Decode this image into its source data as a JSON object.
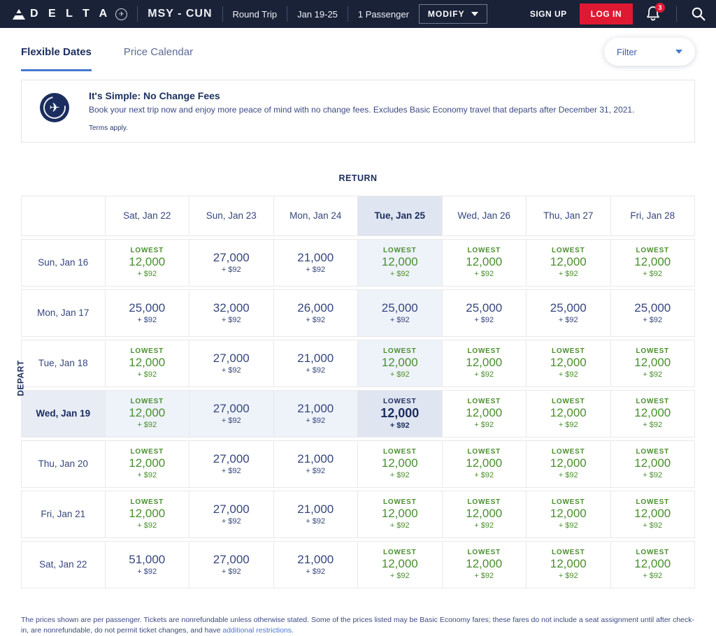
{
  "colors": {
    "brand_navy": "#1a2238",
    "accent_red": "#e01933",
    "lowest_green": "#4a8f2e",
    "highlight_blue": "#dfe5f1",
    "link_blue": "#4679d2"
  },
  "header": {
    "brand": "D E L T A",
    "route": "MSY - CUN",
    "trip_type": "Round Trip",
    "dates": "Jan 19-25",
    "passengers": "1 Passenger",
    "modify_label": "MODIFY",
    "sign_up_label": "SIGN UP",
    "log_in_label": "LOG IN",
    "notification_count": "3"
  },
  "tabs": [
    {
      "label": "Flexible Dates",
      "active": true
    },
    {
      "label": "Price Calendar",
      "active": false
    }
  ],
  "filter": {
    "label": "Filter"
  },
  "banner": {
    "title": "It's Simple: No Change Fees",
    "body": "Book your next trip now and enjoy more peace of mind with no change fees. Excludes Basic Economy travel that departs after December 31, 2021.",
    "terms": "Terms apply."
  },
  "matrix": {
    "return_label": "RETURN",
    "depart_label": "DEPART",
    "columns": [
      "Sat, Jan 22",
      "Sun, Jan 23",
      "Mon, Jan 24",
      "Tue, Jan 25",
      "Wed, Jan 26",
      "Thu, Jan 27",
      "Fri, Jan 28"
    ],
    "selected": {
      "row": 3,
      "col": 3
    },
    "lowest_label": "LOWEST",
    "rows": [
      {
        "label": "Sun, Jan 16",
        "cells": [
          {
            "lowest": true,
            "miles": "12,000",
            "fee": "+ $92"
          },
          {
            "lowest": false,
            "miles": "27,000",
            "fee": "+ $92"
          },
          {
            "lowest": false,
            "miles": "21,000",
            "fee": "+ $92"
          },
          {
            "lowest": true,
            "miles": "12,000",
            "fee": "+ $92"
          },
          {
            "lowest": true,
            "miles": "12,000",
            "fee": "+ $92"
          },
          {
            "lowest": true,
            "miles": "12,000",
            "fee": "+ $92"
          },
          {
            "lowest": true,
            "miles": "12,000",
            "fee": "+ $92"
          }
        ]
      },
      {
        "label": "Mon, Jan 17",
        "cells": [
          {
            "lowest": false,
            "miles": "25,000",
            "fee": "+ $92"
          },
          {
            "lowest": false,
            "miles": "32,000",
            "fee": "+ $92"
          },
          {
            "lowest": false,
            "miles": "26,000",
            "fee": "+ $92"
          },
          {
            "lowest": false,
            "miles": "25,000",
            "fee": "+ $92"
          },
          {
            "lowest": false,
            "miles": "25,000",
            "fee": "+ $92"
          },
          {
            "lowest": false,
            "miles": "25,000",
            "fee": "+ $92"
          },
          {
            "lowest": false,
            "miles": "25,000",
            "fee": "+ $92"
          }
        ]
      },
      {
        "label": "Tue, Jan 18",
        "cells": [
          {
            "lowest": true,
            "miles": "12,000",
            "fee": "+ $92"
          },
          {
            "lowest": false,
            "miles": "27,000",
            "fee": "+ $92"
          },
          {
            "lowest": false,
            "miles": "21,000",
            "fee": "+ $92"
          },
          {
            "lowest": true,
            "miles": "12,000",
            "fee": "+ $92"
          },
          {
            "lowest": true,
            "miles": "12,000",
            "fee": "+ $92"
          },
          {
            "lowest": true,
            "miles": "12,000",
            "fee": "+ $92"
          },
          {
            "lowest": true,
            "miles": "12,000",
            "fee": "+ $92"
          }
        ]
      },
      {
        "label": "Wed, Jan 19",
        "cells": [
          {
            "lowest": true,
            "miles": "12,000",
            "fee": "+ $92"
          },
          {
            "lowest": false,
            "miles": "27,000",
            "fee": "+ $92"
          },
          {
            "lowest": false,
            "miles": "21,000",
            "fee": "+ $92"
          },
          {
            "lowest": true,
            "miles": "12,000",
            "fee": "+ $92"
          },
          {
            "lowest": true,
            "miles": "12,000",
            "fee": "+ $92"
          },
          {
            "lowest": true,
            "miles": "12,000",
            "fee": "+ $92"
          },
          {
            "lowest": true,
            "miles": "12,000",
            "fee": "+ $92"
          }
        ]
      },
      {
        "label": "Thu, Jan 20",
        "cells": [
          {
            "lowest": true,
            "miles": "12,000",
            "fee": "+ $92"
          },
          {
            "lowest": false,
            "miles": "27,000",
            "fee": "+ $92"
          },
          {
            "lowest": false,
            "miles": "21,000",
            "fee": "+ $92"
          },
          {
            "lowest": true,
            "miles": "12,000",
            "fee": "+ $92"
          },
          {
            "lowest": true,
            "miles": "12,000",
            "fee": "+ $92"
          },
          {
            "lowest": true,
            "miles": "12,000",
            "fee": "+ $92"
          },
          {
            "lowest": true,
            "miles": "12,000",
            "fee": "+ $92"
          }
        ]
      },
      {
        "label": "Fri, Jan 21",
        "cells": [
          {
            "lowest": true,
            "miles": "12,000",
            "fee": "+ $92"
          },
          {
            "lowest": false,
            "miles": "27,000",
            "fee": "+ $92"
          },
          {
            "lowest": false,
            "miles": "21,000",
            "fee": "+ $92"
          },
          {
            "lowest": true,
            "miles": "12,000",
            "fee": "+ $92"
          },
          {
            "lowest": true,
            "miles": "12,000",
            "fee": "+ $92"
          },
          {
            "lowest": true,
            "miles": "12,000",
            "fee": "+ $92"
          },
          {
            "lowest": true,
            "miles": "12,000",
            "fee": "+ $92"
          }
        ]
      },
      {
        "label": "Sat, Jan 22",
        "cells": [
          {
            "lowest": false,
            "miles": "51,000",
            "fee": "+ $92"
          },
          {
            "lowest": false,
            "miles": "27,000",
            "fee": "+ $92"
          },
          {
            "lowest": false,
            "miles": "21,000",
            "fee": "+ $92"
          },
          {
            "lowest": true,
            "miles": "12,000",
            "fee": "+ $92"
          },
          {
            "lowest": true,
            "miles": "12,000",
            "fee": "+ $92"
          },
          {
            "lowest": true,
            "miles": "12,000",
            "fee": "+ $92"
          },
          {
            "lowest": true,
            "miles": "12,000",
            "fee": "+ $92"
          }
        ]
      }
    ]
  },
  "footer": {
    "text": "The prices shown are per passenger. Tickets are nonrefundable unless otherwise stated. Some of the prices listed may be Basic Economy fares; these fares do not include a seat assignment until after check-in, are nonrefundable, do not permit ticket changes, and have ",
    "link_text": "additional restrictions."
  }
}
